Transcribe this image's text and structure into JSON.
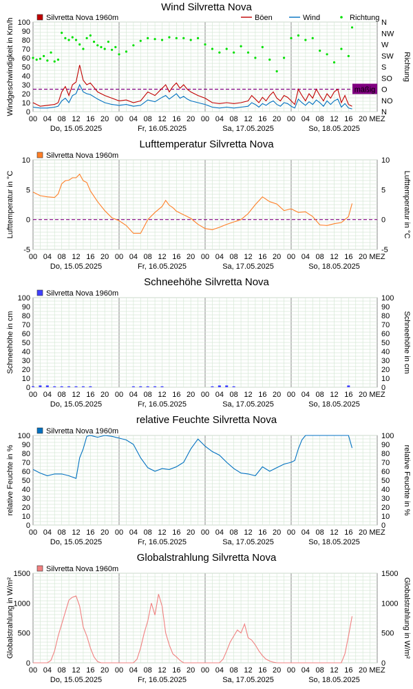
{
  "x_ticks": [
    "00",
    "04",
    "08",
    "12",
    "16",
    "20",
    "00",
    "04",
    "08",
    "12",
    "16",
    "20",
    "00",
    "04",
    "08",
    "12",
    "16",
    "20",
    "00",
    "04",
    "08",
    "12",
    "16",
    "20"
  ],
  "x_end_label": "MEZ",
  "days": [
    "Do, 15.05.2025",
    "Fr, 16.05.2025",
    "Sa, 17.05.2025",
    "So, 18.05.2025"
  ],
  "chart_data": [
    {
      "type": "line",
      "title": "Wind    Silvretta Nova",
      "station": "Silvretta Nova",
      "station_label": "Silvretta Nova   1960m",
      "ylabel": "Windgeschwindigkeit in Km/h",
      "ylabel_right": "Richtung",
      "ylim": [
        0,
        100
      ],
      "y_ticks": [
        0,
        10,
        20,
        30,
        40,
        50,
        60,
        70,
        80,
        90,
        100
      ],
      "right_ticks": [
        "N",
        "NO",
        "O",
        "SO",
        "S",
        "SW",
        "W",
        "NW",
        "N"
      ],
      "reference_line": {
        "value": 25,
        "label": "mäßig",
        "color": "#800080"
      },
      "x_unit": "hours since 15.05.2025 00:00",
      "x_range": [
        0,
        96
      ],
      "series": [
        {
          "name": "Böen",
          "color": "#c00000",
          "x": [
            0,
            2,
            4,
            6,
            7,
            8,
            9,
            10,
            11,
            12,
            13,
            14,
            15,
            16,
            18,
            20,
            22,
            24,
            26,
            28,
            30,
            32,
            34,
            36,
            37,
            38,
            39,
            40,
            41,
            42,
            43,
            44,
            46,
            48,
            50,
            52,
            54,
            56,
            58,
            60,
            61,
            62,
            63,
            64,
            65,
            66,
            67,
            68,
            69,
            70,
            71,
            72,
            73,
            74,
            75,
            76,
            77,
            78,
            79,
            80,
            81,
            82,
            83,
            84,
            85,
            86,
            87,
            88,
            89
          ],
          "values": [
            10,
            6,
            7,
            8,
            10,
            22,
            28,
            18,
            30,
            33,
            52,
            35,
            30,
            32,
            22,
            18,
            15,
            12,
            13,
            10,
            12,
            22,
            18,
            26,
            30,
            22,
            28,
            32,
            26,
            30,
            25,
            22,
            18,
            15,
            10,
            9,
            10,
            9,
            10,
            12,
            18,
            14,
            10,
            16,
            12,
            18,
            22,
            15,
            12,
            18,
            16,
            12,
            8,
            25,
            18,
            12,
            20,
            15,
            25,
            18,
            12,
            20,
            15,
            22,
            25,
            10,
            18,
            8,
            6
          ]
        },
        {
          "name": "Wind",
          "color": "#0070c0",
          "x": [
            0,
            2,
            4,
            6,
            7,
            8,
            9,
            10,
            11,
            12,
            13,
            14,
            15,
            16,
            18,
            20,
            22,
            24,
            26,
            28,
            30,
            32,
            34,
            36,
            37,
            38,
            39,
            40,
            41,
            42,
            43,
            44,
            46,
            48,
            50,
            52,
            54,
            56,
            58,
            60,
            61,
            62,
            63,
            64,
            65,
            66,
            67,
            68,
            69,
            70,
            71,
            72,
            73,
            74,
            75,
            76,
            77,
            78,
            79,
            80,
            81,
            82,
            83,
            84,
            85,
            86,
            87,
            88,
            89
          ],
          "values": [
            5,
            4,
            4,
            5,
            6,
            12,
            15,
            10,
            18,
            20,
            30,
            22,
            20,
            19,
            14,
            10,
            8,
            7,
            8,
            6,
            7,
            13,
            11,
            16,
            18,
            14,
            17,
            20,
            15,
            17,
            14,
            12,
            10,
            8,
            5,
            4,
            5,
            4,
            5,
            6,
            10,
            8,
            5,
            9,
            7,
            10,
            12,
            8,
            6,
            10,
            9,
            6,
            4,
            14,
            10,
            7,
            11,
            8,
            13,
            10,
            6,
            12,
            8,
            12,
            14,
            5,
            9,
            4,
            3
          ]
        },
        {
          "name": "Richtung",
          "color": "#00e000",
          "kind": "points",
          "x": [
            0,
            1,
            2,
            3,
            4,
            5,
            6,
            7,
            8,
            9,
            10,
            11,
            12,
            13,
            14,
            15,
            16,
            17,
            18,
            19,
            20,
            21,
            22,
            23,
            24,
            26,
            28,
            30,
            32,
            34,
            36,
            38,
            40,
            42,
            44,
            46,
            48,
            50,
            52,
            54,
            56,
            58,
            60,
            62,
            64,
            66,
            68,
            70,
            72,
            74,
            76,
            78,
            80,
            82,
            84,
            86,
            88,
            89
          ],
          "values": [
            60,
            58,
            59,
            62,
            57,
            66,
            56,
            58,
            88,
            82,
            80,
            83,
            80,
            75,
            70,
            82,
            85,
            78,
            74,
            72,
            70,
            78,
            69,
            72,
            64,
            67,
            74,
            79,
            82,
            81,
            80,
            83,
            82,
            82,
            80,
            82,
            75,
            70,
            66,
            70,
            66,
            73,
            66,
            60,
            72,
            58,
            45,
            60,
            82,
            85,
            80,
            82,
            68,
            64,
            55,
            70,
            62,
            94
          ]
        }
      ]
    },
    {
      "type": "line",
      "title": "Lufttemperatur    Silvretta Nova",
      "station": "Silvretta Nova",
      "station_label": "Silvretta Nova   1960m",
      "ylabel": "Lufttemperatur in °C",
      "ylabel_right": "Lufttemperatur in °C",
      "ylim": [
        -5,
        10
      ],
      "y_ticks": [
        -5,
        0,
        5,
        10
      ],
      "reference_line": {
        "value": 0,
        "color": "#800080"
      },
      "x_unit": "hours since 15.05.2025 00:00",
      "x_range": [
        0,
        96
      ],
      "series": [
        {
          "name": "Lufttemperatur",
          "color": "#ff7f27",
          "x": [
            0,
            2,
            4,
            6,
            7,
            8,
            9,
            10,
            11,
            12,
            13,
            14,
            15,
            16,
            18,
            20,
            22,
            24,
            26,
            28,
            30,
            32,
            34,
            36,
            37,
            38,
            39,
            40,
            42,
            44,
            46,
            48,
            50,
            52,
            54,
            56,
            58,
            60,
            62,
            64,
            66,
            68,
            70,
            72,
            74,
            76,
            78,
            80,
            82,
            84,
            86,
            87,
            88,
            89
          ],
          "values": [
            4.6,
            4.0,
            3.8,
            3.7,
            4.3,
            6.0,
            6.5,
            6.6,
            7.0,
            7.0,
            7.6,
            6.5,
            6.2,
            4.8,
            3.0,
            1.5,
            0.3,
            -0.2,
            -1.0,
            -2.3,
            -2.3,
            0.0,
            1.2,
            2.2,
            3.2,
            2.4,
            2.0,
            1.4,
            0.8,
            0.2,
            -0.8,
            -1.5,
            -1.7,
            -1.3,
            -0.8,
            -0.4,
            0.0,
            1.0,
            2.5,
            3.8,
            3.0,
            2.6,
            1.5,
            1.8,
            1.2,
            1.3,
            0.5,
            -0.9,
            -1.0,
            -0.7,
            -0.5,
            0.0,
            0.5,
            2.7
          ]
        }
      ]
    },
    {
      "type": "bar",
      "title": "Schneehöhe    Silvretta Nova",
      "station": "Silvretta Nova",
      "station_label": "Silvretta Nova   1960m",
      "ylabel": "Schneehöhe in cm",
      "ylabel_right": "Schneehöhe in cm",
      "ylim": [
        0,
        100
      ],
      "y_ticks": [
        0,
        10,
        20,
        30,
        40,
        50,
        60,
        70,
        80,
        90,
        100
      ],
      "x_unit": "hours since 15.05.2025 00:00",
      "x_range": [
        0,
        96
      ],
      "series": [
        {
          "name": "Schneehöhe",
          "color": "#4040ff",
          "x": [
            0,
            2,
            4,
            6,
            8,
            10,
            12,
            14,
            16,
            18,
            20,
            22,
            24,
            26,
            28,
            30,
            32,
            34,
            36,
            38,
            40,
            42,
            44,
            46,
            48,
            50,
            52,
            54,
            56,
            58,
            60,
            62,
            64,
            66,
            68,
            70,
            72,
            74,
            76,
            78,
            80,
            82,
            84,
            86,
            88
          ],
          "values": [
            1,
            2,
            2,
            1,
            1,
            1,
            1,
            1,
            1,
            0,
            0,
            0,
            0,
            0,
            1,
            1,
            1,
            1,
            1,
            0,
            0,
            0,
            0,
            0,
            0,
            1,
            2,
            2,
            1,
            0,
            0,
            0,
            0,
            0,
            0,
            0,
            0,
            0,
            0,
            0,
            0,
            0,
            0,
            0,
            2
          ]
        }
      ]
    },
    {
      "type": "line",
      "title": "relative Feuchte    Silvretta Nova",
      "station": "Silvretta Nova",
      "station_label": "Silvretta Nova   1960m",
      "ylabel": "relative Feuchte in %",
      "ylabel_right": "relative Feuchte in %",
      "ylim": [
        0,
        100
      ],
      "y_ticks": [
        0,
        10,
        20,
        30,
        40,
        50,
        60,
        70,
        80,
        90,
        100
      ],
      "x_unit": "hours since 15.05.2025 00:00",
      "x_range": [
        0,
        96
      ],
      "series": [
        {
          "name": "relative Feuchte",
          "color": "#0070c0",
          "x": [
            0,
            2,
            4,
            6,
            8,
            10,
            12,
            13,
            14,
            15,
            16,
            17,
            18,
            20,
            22,
            24,
            26,
            28,
            30,
            32,
            34,
            36,
            38,
            40,
            42,
            44,
            46,
            48,
            50,
            52,
            54,
            56,
            58,
            60,
            62,
            64,
            66,
            68,
            70,
            72,
            73,
            74,
            75,
            76,
            78,
            80,
            82,
            84,
            86,
            88,
            89
          ],
          "values": [
            62,
            58,
            55,
            57,
            57,
            55,
            52,
            75,
            85,
            99,
            100,
            99,
            98,
            100,
            99,
            97,
            95,
            90,
            75,
            64,
            60,
            63,
            62,
            65,
            70,
            85,
            96,
            88,
            82,
            78,
            70,
            63,
            58,
            57,
            55,
            65,
            60,
            64,
            68,
            70,
            72,
            85,
            95,
            100,
            100,
            100,
            100,
            100,
            100,
            100,
            86
          ]
        }
      ]
    },
    {
      "type": "area",
      "title": "Globalstrahlung    Silvretta Nova",
      "station": "Silvretta Nova",
      "station_label": "Silvretta Nova   1960m",
      "ylabel": "Globalstrahlung in W/m²",
      "ylabel_right": "Globalstrahlung in W/m²",
      "ylim": [
        0,
        1500
      ],
      "y_ticks": [
        0,
        500,
        1000,
        1500
      ],
      "x_unit": "hours since 15.05.2025 00:00",
      "x_range": [
        0,
        96
      ],
      "series": [
        {
          "name": "Globalstrahlung",
          "color": "#f08080",
          "x": [
            0,
            4,
            5,
            6,
            7,
            8,
            9,
            10,
            11,
            12,
            13,
            14,
            15,
            16,
            17,
            18,
            19,
            20,
            24,
            28,
            29,
            30,
            31,
            32,
            33,
            34,
            35,
            36,
            37,
            38,
            39,
            40,
            41,
            42,
            43,
            44,
            48,
            52,
            53,
            54,
            55,
            56,
            57,
            58,
            59,
            60,
            61,
            62,
            63,
            64,
            65,
            66,
            67,
            68,
            72,
            76,
            80,
            81,
            82,
            83,
            84,
            85,
            86,
            87,
            88,
            89
          ],
          "values": [
            0,
            0,
            40,
            200,
            450,
            650,
            850,
            1050,
            1100,
            1120,
            950,
            600,
            450,
            250,
            100,
            20,
            0,
            0,
            0,
            0,
            60,
            250,
            500,
            700,
            1000,
            800,
            1150,
            950,
            500,
            300,
            150,
            100,
            40,
            0,
            0,
            0,
            0,
            0,
            60,
            200,
            350,
            450,
            550,
            500,
            650,
            420,
            380,
            300,
            200,
            120,
            60,
            30,
            10,
            0,
            0,
            0,
            0,
            0,
            0,
            0,
            0,
            0,
            0,
            150,
            450,
            780
          ]
        }
      ]
    }
  ]
}
